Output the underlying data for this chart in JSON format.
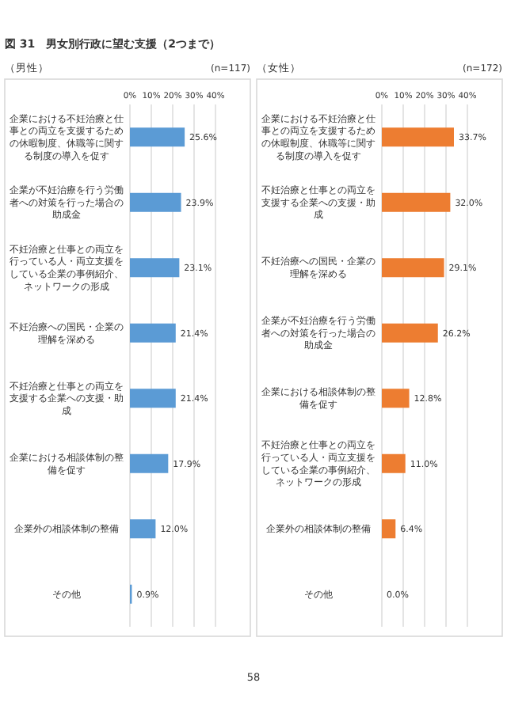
{
  "chart_data": [
    {
      "type": "bar",
      "orientation": "horizontal",
      "title": "図 31　男女別行政に望む支援（2つまで）",
      "subtitle": "（男性）",
      "annotations": [
        "(n=117)"
      ],
      "categories": [
        "企業における不妊治療と仕事との両立を支援するための休暇制度、休職等に関する制度の導入を促す",
        "企業が不妊治療を行う労働者への対策を行った場合の助成金",
        "不妊治療と仕事との両立を行っている人・両立支援をしている企業の事例紹介、ネットワークの形成",
        "不妊治療への国民・企業の理解を深める",
        "不妊治療と仕事との両立を支援する企業への支援・助成",
        "企業における相談体制の整備を促す",
        "企業外の相談体制の整備",
        "その他"
      ],
      "values": [
        25.6,
        23.9,
        23.1,
        21.4,
        21.4,
        17.9,
        12.0,
        0.9
      ],
      "value_labels": [
        "25.6%",
        "23.9%",
        "23.1%",
        "21.4%",
        "21.4%",
        "17.9%",
        "12.0%",
        "0.9%"
      ],
      "color": "#5b9bd5",
      "xlim": [
        0,
        40
      ],
      "xticks": [
        {
          "value": 0,
          "label": "0%"
        },
        {
          "value": 10,
          "label": "10%"
        },
        {
          "value": 20,
          "label": "20%"
        },
        {
          "value": 30,
          "label": "30%"
        },
        {
          "value": 40,
          "label": "40%"
        }
      ],
      "grid": "x"
    },
    {
      "type": "bar",
      "orientation": "horizontal",
      "subtitle": "（女性）",
      "annotations": [
        "(n=172)",
        "58"
      ],
      "categories": [
        "企業における不妊治療と仕事との両立を支援するための休暇制度、休職等に関する制度の導入を促す",
        "不妊治療と仕事との両立を支援する企業への支援・助成",
        "不妊治療への国民・企業の理解を深める",
        "企業が不妊治療を行う労働者への対策を行った場合の助成金",
        "企業における相談体制の整備を促す",
        "不妊治療と仕事との両立を行っている人・両立支援をしている企業の事例紹介、ネットワークの形成",
        "企業外の相談体制の整備",
        "その他"
      ],
      "values": [
        33.7,
        32.0,
        29.1,
        26.2,
        12.8,
        11.0,
        6.4,
        0.0
      ],
      "value_labels": [
        "33.7%",
        "32.0%",
        "29.1%",
        "26.2%",
        "12.8%",
        "11.0%",
        "6.4%",
        "0.0%"
      ],
      "color": "#ed7d31",
      "xlim": [
        0,
        40
      ],
      "xticks": [
        {
          "value": 0,
          "label": "0%"
        },
        {
          "value": 10,
          "label": "10%"
        },
        {
          "value": 20,
          "label": "20%"
        },
        {
          "value": 30,
          "label": "30%"
        },
        {
          "value": 40,
          "label": "40%"
        }
      ],
      "grid": "x"
    }
  ]
}
